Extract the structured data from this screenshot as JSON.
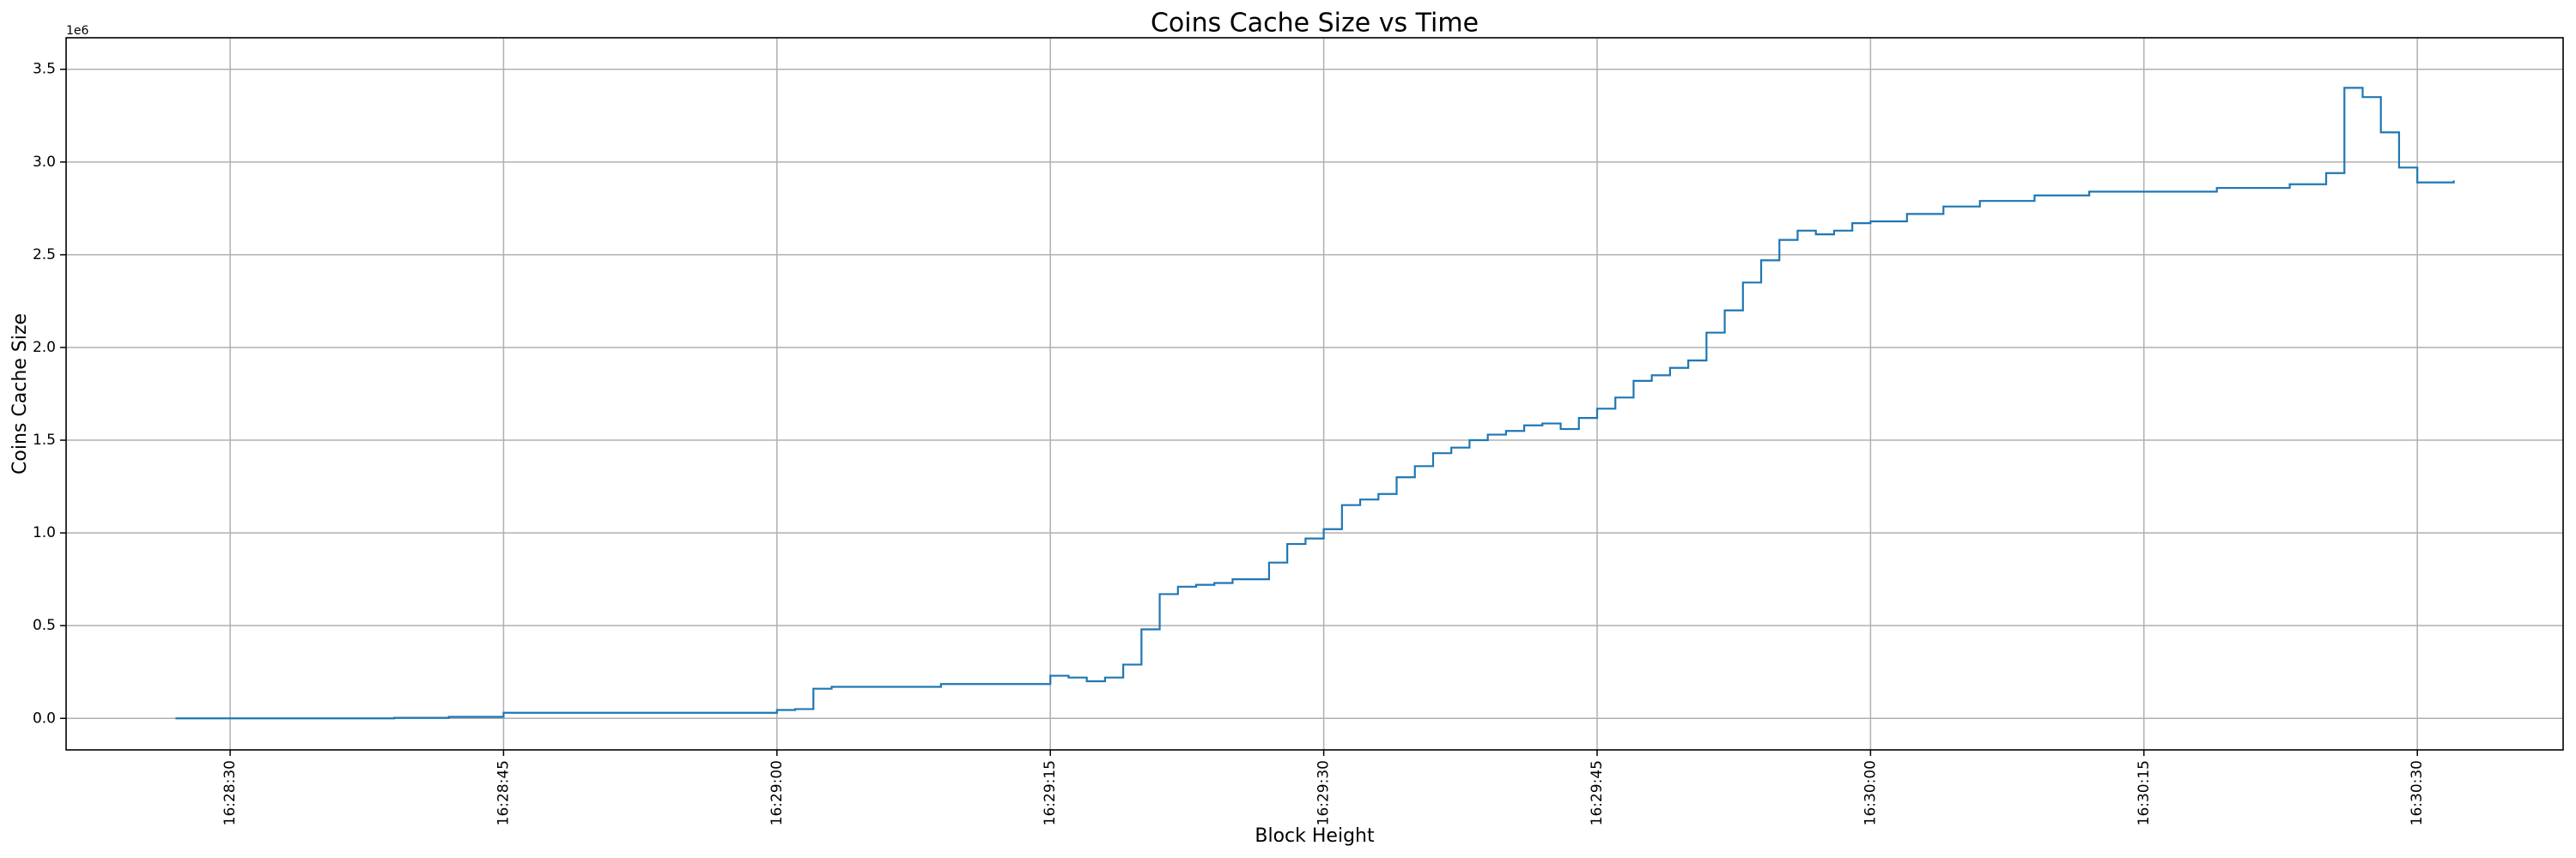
{
  "chart_data": {
    "type": "step",
    "title": "Coins Cache Size vs Time",
    "xlabel": "Block Height",
    "ylabel": "Coins Cache Size",
    "y_offset_text": "1e6",
    "grid": true,
    "xlim": [
      "16:28:21",
      "16:30:38"
    ],
    "xticks": [
      "16:28:30",
      "16:28:45",
      "16:29:00",
      "16:29:15",
      "16:29:30",
      "16:29:45",
      "16:30:00",
      "16:30:15",
      "16:30:30"
    ],
    "ylim": [
      -0.17,
      3.67
    ],
    "yticks": [
      {
        "value": 0,
        "label": "0.0"
      },
      0.5,
      {
        "value": 1,
        "label": "1.0"
      },
      1.5,
      {
        "value": 2,
        "label": "2.0"
      },
      2.5,
      {
        "value": 3,
        "label": "3.0"
      },
      3.5
    ],
    "x": [
      "16:28:27",
      "16:28:39",
      "16:28:42",
      "16:28:45",
      "16:29:00",
      "16:29:01",
      "16:29:02",
      "16:29:03",
      "16:29:09",
      "16:29:15",
      "16:29:16",
      "16:29:17",
      "16:29:18",
      "16:29:19",
      "16:29:20",
      "16:29:21",
      "16:29:22",
      "16:29:23",
      "16:29:24",
      "16:29:25",
      "16:29:27",
      "16:29:28",
      "16:29:29",
      "16:29:30",
      "16:29:31",
      "16:29:32",
      "16:29:33",
      "16:29:34",
      "16:29:35",
      "16:29:36",
      "16:29:37",
      "16:29:38",
      "16:29:39",
      "16:29:40",
      "16:29:41",
      "16:29:42",
      "16:29:43",
      "16:29:44",
      "16:29:45",
      "16:29:46",
      "16:29:47",
      "16:29:48",
      "16:29:49",
      "16:29:50",
      "16:29:51",
      "16:29:52",
      "16:29:53",
      "16:29:54",
      "16:29:55",
      "16:29:56",
      "16:29:57",
      "16:29:58",
      "16:29:59",
      "16:30:00",
      "16:30:02",
      "16:30:04",
      "16:30:06",
      "16:30:09",
      "16:30:12",
      "16:30:19",
      "16:30:23",
      "16:30:25",
      "16:30:26",
      "16:30:27",
      "16:30:28",
      "16:30:29",
      "16:30:30",
      "16:30:32"
    ],
    "series": [
      {
        "name": "Coins Cache Size",
        "color": "#1f77b4",
        "values": [
          0.0,
          0.003,
          0.008,
          0.03,
          0.045,
          0.05,
          0.16,
          0.17,
          0.185,
          0.23,
          0.22,
          0.2,
          0.22,
          0.29,
          0.48,
          0.67,
          0.71,
          0.72,
          0.73,
          0.75,
          0.84,
          0.94,
          0.97,
          1.02,
          1.15,
          1.18,
          1.21,
          1.3,
          1.36,
          1.43,
          1.46,
          1.5,
          1.53,
          1.55,
          1.58,
          1.59,
          1.56,
          1.62,
          1.67,
          1.73,
          1.82,
          1.85,
          1.89,
          1.93,
          2.08,
          2.2,
          2.35,
          2.47,
          2.58,
          2.63,
          2.61,
          2.63,
          2.67,
          2.68,
          2.72,
          2.76,
          2.79,
          2.82,
          2.84,
          2.86,
          2.88,
          2.94,
          3.4,
          3.35,
          3.16,
          2.97,
          2.89,
          2.9
        ]
      }
    ]
  }
}
